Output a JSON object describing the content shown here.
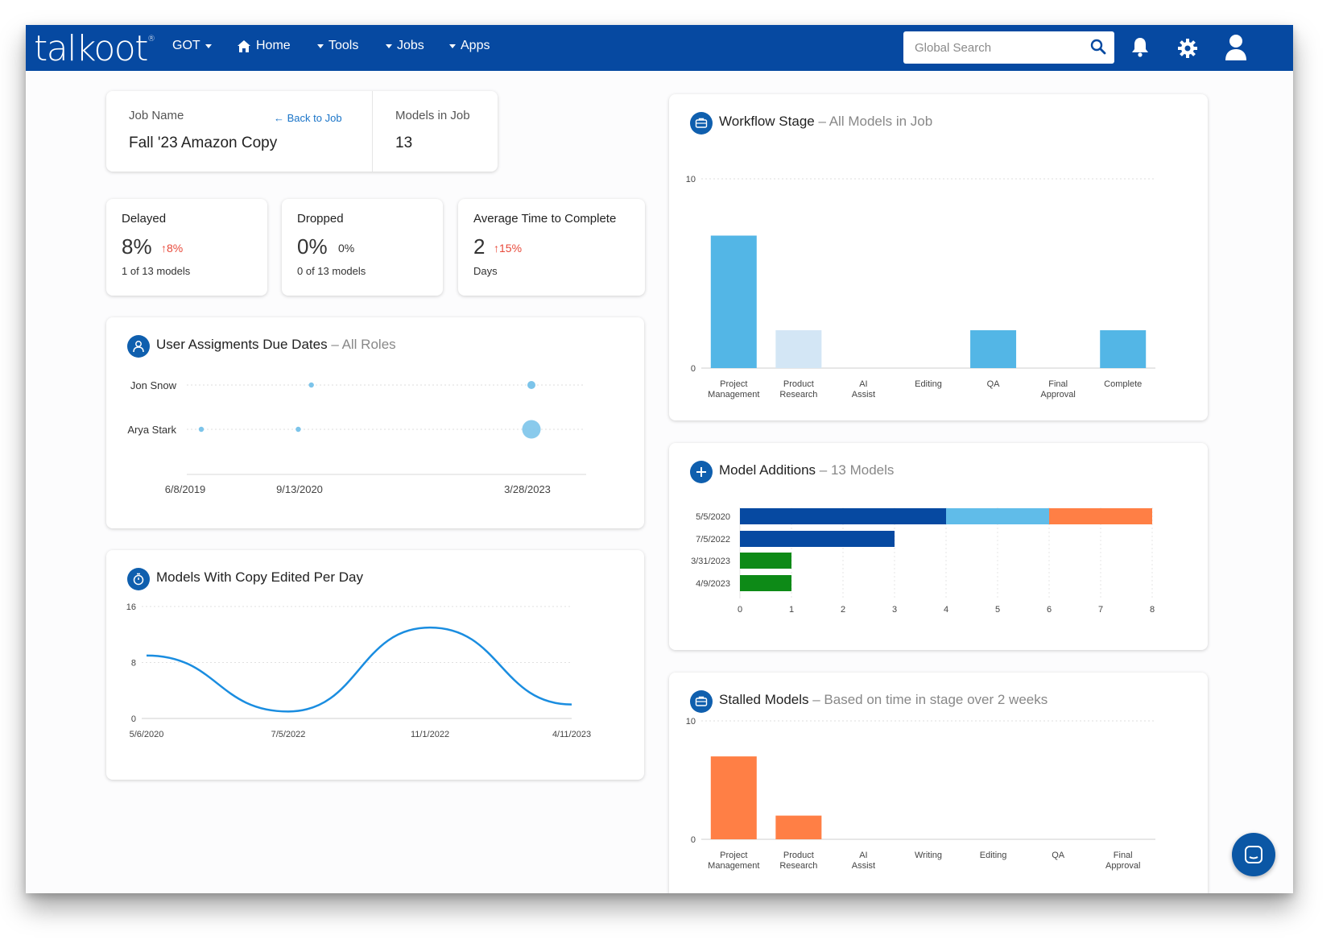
{
  "brand": {
    "logo": "talkoot",
    "nav_bg": "#0649a1",
    "accent": "#0f5fae"
  },
  "nav": {
    "client": "GOT",
    "home": "Home",
    "tools": "Tools",
    "jobs": "Jobs",
    "apps": "Apps",
    "search_placeholder": "Global Search",
    "icons": [
      "search-icon",
      "bell-icon",
      "gear-icon",
      "user-icon"
    ]
  },
  "job": {
    "name_label": "Job Name",
    "back_link": "Back to Job",
    "name": "Fall '23 Amazon Copy",
    "models_label": "Models in Job",
    "models_count": "13"
  },
  "stats": [
    {
      "title": "Delayed",
      "value": "8%",
      "delta": "8%",
      "delta_dir": "up",
      "sub": "1 of 13 models"
    },
    {
      "title": "Dropped",
      "value": "0%",
      "delta": "0%",
      "delta_dir": "none",
      "sub": "0 of 13 models"
    },
    {
      "title": "Average Time to Complete",
      "value": "2",
      "delta": "15%",
      "delta_dir": "up",
      "sub": "Days"
    }
  ],
  "user_assignments": {
    "title": "User Assigments Due Dates",
    "subtitle": "– All Roles",
    "chart_data": {
      "type": "scatter",
      "rows": [
        "Jon Snow",
        "Arya Stark"
      ],
      "x_ticks": [
        "6/8/2019",
        "9/13/2020",
        "3/28/2023"
      ],
      "points": [
        {
          "row": "Jon Snow",
          "x": "2020-09-13",
          "size": 1
        },
        {
          "row": "Jon Snow",
          "x": "2023-03-28",
          "size": 2
        },
        {
          "row": "Arya Stark",
          "x": "2019-06-08",
          "size": 1
        },
        {
          "row": "Arya Stark",
          "x": "2020-07-20",
          "size": 1
        },
        {
          "row": "Arya Stark",
          "x": "2023-03-28",
          "size": 4
        }
      ]
    }
  },
  "copy_edited": {
    "title": "Models With Copy Edited Per Day",
    "chart_data": {
      "type": "line",
      "x_ticks": [
        "5/6/2020",
        "7/5/2022",
        "11/1/2022",
        "4/11/2023"
      ],
      "y_ticks": [
        0,
        8,
        16
      ],
      "ylim": [
        0,
        16
      ],
      "series": [
        {
          "x": [
            "5/6/2020",
            "7/5/2022",
            "11/1/2022",
            "4/11/2023"
          ],
          "values": [
            9,
            1,
            13,
            2
          ]
        }
      ],
      "color": "#1a8de0"
    }
  },
  "workflow": {
    "title": "Workflow Stage",
    "subtitle": "– All Models in Job",
    "chart_data": {
      "type": "bar",
      "categories": [
        [
          "Project",
          "Management"
        ],
        [
          "Product",
          "Research"
        ],
        [
          "AI",
          "Assist"
        ],
        [
          "Editing"
        ],
        [
          "QA"
        ],
        [
          "Final",
          "Approval"
        ],
        [
          "Complete"
        ]
      ],
      "values": [
        7,
        2,
        0,
        0,
        2,
        0,
        2
      ],
      "colors": [
        "#53b6e6",
        "#d3e6f5",
        "#53b6e6",
        "#53b6e6",
        "#53b6e6",
        "#53b6e6",
        "#53b6e6"
      ],
      "y_ticks": [
        0,
        10
      ],
      "ylim": [
        0,
        10
      ]
    }
  },
  "model_additions": {
    "title": "Model Additions",
    "subtitle": "– 13 Models",
    "chart_data": {
      "type": "bar",
      "orientation": "horizontal",
      "stacked": true,
      "categories": [
        "5/5/2020",
        "7/5/2022",
        "3/31/2023",
        "4/9/2023"
      ],
      "series": [
        {
          "color": "#0649a1",
          "values": [
            4,
            3,
            0,
            0
          ]
        },
        {
          "color": "#60bce9",
          "values": [
            2,
            0,
            0,
            0
          ]
        },
        {
          "color": "#ff7f45",
          "values": [
            2,
            0,
            0,
            0
          ]
        },
        {
          "color": "#0d8a17",
          "values": [
            0,
            0,
            1,
            1
          ]
        }
      ],
      "x_ticks": [
        0,
        1,
        2,
        3,
        4,
        5,
        6,
        7,
        8
      ],
      "xlim": [
        0,
        8
      ]
    }
  },
  "stalled": {
    "title": "Stalled Models",
    "subtitle": "– Based on time in stage over 2 weeks",
    "chart_data": {
      "type": "bar",
      "categories": [
        [
          "Project",
          "Management"
        ],
        [
          "Product",
          "Research"
        ],
        [
          "AI",
          "Assist"
        ],
        [
          "Writing"
        ],
        [
          "Editing"
        ],
        [
          "QA"
        ],
        [
          "Final",
          "Approval"
        ]
      ],
      "values": [
        7,
        2,
        0,
        0,
        0,
        0,
        0
      ],
      "color": "#ff7f45",
      "y_ticks": [
        0,
        10
      ],
      "ylim": [
        0,
        10
      ]
    }
  }
}
